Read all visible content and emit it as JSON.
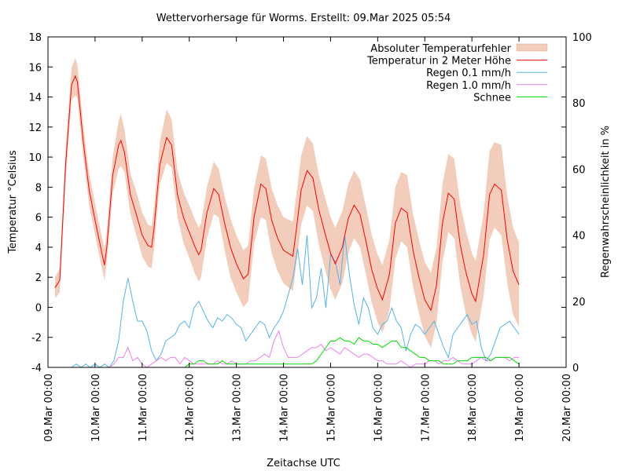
{
  "chart_data": {
    "type": "line",
    "title": "Wettervorhersage für Worms. Erstellt: 09.Mar 2025 05:54",
    "xlabel": "Zeitachse UTC",
    "ylabel": "Temperatur °Celsius",
    "y2label": "Regenwahrscheinlichkeit in %",
    "ylim": [
      -4,
      18
    ],
    "y2lim": [
      0,
      100
    ],
    "xlim_days": [
      0,
      11
    ],
    "yticks": [
      "18",
      "16",
      "14",
      "12",
      "10",
      "8",
      "6",
      "4",
      "2",
      "0",
      "-2",
      "-4"
    ],
    "y2ticks": [
      "100",
      "80",
      "60",
      "40",
      "20",
      "0"
    ],
    "xticks": [
      "09.Mar 00:00",
      "10.Mar 00:00",
      "11.Mar 00:00",
      "12.Mar 00:00",
      "13.Mar 00:00",
      "14.Mar 00:00",
      "15.Mar 00:00",
      "16.Mar 00:00",
      "17.Mar 00:00",
      "18.Mar 00:00",
      "19.Mar 00:00",
      "20.Mar 00:00"
    ],
    "legend_position": "top-right",
    "grid": false,
    "x_unit": "days since 09.Mar 00:00 UTC",
    "x": [
      0.15,
      0.25,
      0.375,
      0.5,
      0.58,
      0.625,
      0.75,
      0.875,
      1.0,
      1.125,
      1.2,
      1.25,
      1.375,
      1.5,
      1.55,
      1.625,
      1.75,
      1.875,
      2.0,
      2.125,
      2.2,
      2.25,
      2.375,
      2.52,
      2.625,
      2.75,
      2.875,
      3.0,
      3.125,
      3.2,
      3.25,
      3.375,
      3.52,
      3.625,
      3.75,
      3.875,
      4.0,
      4.15,
      4.25,
      4.375,
      4.52,
      4.625,
      4.75,
      4.875,
      5.0,
      5.2,
      5.25,
      5.375,
      5.5,
      5.625,
      5.75,
      5.875,
      6.0,
      6.1,
      6.25,
      6.375,
      6.5,
      6.625,
      6.75,
      6.875,
      7.0,
      7.1,
      7.25,
      7.375,
      7.5,
      7.625,
      7.75,
      7.875,
      8.0,
      8.13,
      8.25,
      8.375,
      8.5,
      8.625,
      8.75,
      8.875,
      9.0,
      9.08,
      9.25,
      9.375,
      9.48,
      9.625,
      9.75,
      9.875,
      10.0
    ],
    "series": [
      {
        "name": "Temperatur in 2 Meter Höhe",
        "color": "#ff0000",
        "values": [
          1.3,
          1.8,
          9.5,
          14.8,
          15.4,
          15.0,
          11.0,
          7.8,
          5.8,
          3.9,
          2.8,
          4.0,
          8.8,
          10.8,
          11.1,
          10.3,
          7.5,
          6.2,
          4.8,
          4.1,
          4.0,
          5.2,
          9.5,
          11.3,
          10.8,
          7.5,
          6.0,
          5.0,
          4.0,
          3.5,
          3.8,
          6.3,
          7.9,
          7.5,
          5.6,
          4.0,
          2.9,
          1.9,
          2.2,
          6.0,
          8.2,
          7.9,
          5.8,
          4.6,
          3.8,
          3.4,
          4.6,
          7.8,
          9.1,
          8.6,
          6.5,
          5.0,
          3.6,
          2.9,
          4.0,
          5.9,
          6.8,
          6.2,
          4.4,
          2.5,
          1.2,
          0.5,
          2.2,
          5.6,
          6.6,
          6.3,
          3.8,
          2.0,
          0.5,
          -0.2,
          1.5,
          5.6,
          7.6,
          7.2,
          4.2,
          2.3,
          0.9,
          0.4,
          3.5,
          7.5,
          8.2,
          7.8,
          4.5,
          2.4,
          1.5
        ]
      },
      {
        "name": "Absoluter Temperaturfehler",
        "color": "#f2cdbb",
        "lower": [
          0.6,
          1.0,
          8.5,
          13.8,
          14.1,
          13.9,
          10.0,
          6.8,
          4.8,
          2.9,
          1.8,
          3.0,
          7.6,
          9.2,
          9.4,
          9.0,
          6.2,
          4.8,
          3.4,
          2.7,
          2.6,
          3.8,
          8.2,
          9.6,
          9.3,
          6.0,
          4.3,
          3.3,
          2.2,
          1.7,
          2.0,
          4.6,
          6.2,
          6.0,
          3.8,
          2.0,
          1.0,
          0.0,
          0.4,
          4.2,
          6.0,
          5.8,
          3.6,
          2.4,
          1.6,
          1.1,
          2.3,
          5.5,
          6.8,
          6.4,
          4.2,
          2.6,
          1.2,
          0.5,
          1.6,
          3.6,
          4.6,
          4.0,
          2.2,
          0.3,
          -1.0,
          -1.7,
          -0.2,
          3.2,
          4.4,
          4.0,
          1.4,
          -0.4,
          -1.9,
          -2.7,
          -1.0,
          3.0,
          5.0,
          4.6,
          1.5,
          -0.5,
          -1.8,
          -2.3,
          0.8,
          4.5,
          5.3,
          4.8,
          1.6,
          -0.5,
          -1.3
        ],
        "upper": [
          2.0,
          2.6,
          10.5,
          15.9,
          16.6,
          16.2,
          12.1,
          8.9,
          6.9,
          5.0,
          3.9,
          5.1,
          10.0,
          12.4,
          12.9,
          11.8,
          8.9,
          7.7,
          6.3,
          5.5,
          5.4,
          6.6,
          11.0,
          13.2,
          12.5,
          9.1,
          7.7,
          6.8,
          5.8,
          5.3,
          5.6,
          8.0,
          9.7,
          9.2,
          7.4,
          5.9,
          4.8,
          3.8,
          4.1,
          7.9,
          10.1,
          9.9,
          7.9,
          6.8,
          6.0,
          5.7,
          6.9,
          10.1,
          11.4,
          10.9,
          8.8,
          7.4,
          6.0,
          5.3,
          6.4,
          8.2,
          9.1,
          8.5,
          6.7,
          4.8,
          3.5,
          2.8,
          4.5,
          8.0,
          9.0,
          8.8,
          6.2,
          4.5,
          3.0,
          2.3,
          4.0,
          8.2,
          10.2,
          9.9,
          6.9,
          5.1,
          3.6,
          3.1,
          6.3,
          10.4,
          11.0,
          10.8,
          7.4,
          5.3,
          4.3
        ]
      }
    ],
    "rain_x": [
      0.5,
      0.6,
      0.7,
      0.8,
      0.9,
      1.0,
      1.1,
      1.2,
      1.3,
      1.4,
      1.5,
      1.6,
      1.7,
      1.8,
      1.9,
      2.0,
      2.1,
      2.2,
      2.3,
      2.4,
      2.5,
      2.6,
      2.7,
      2.8,
      2.9,
      3.0,
      3.1,
      3.2,
      3.3,
      3.4,
      3.5,
      3.6,
      3.7,
      3.8,
      3.9,
      4.0,
      4.1,
      4.2,
      4.3,
      4.4,
      4.5,
      4.6,
      4.7,
      4.8,
      4.9,
      5.0,
      5.1,
      5.2,
      5.3,
      5.4,
      5.5,
      5.6,
      5.7,
      5.8,
      5.9,
      6.0,
      6.1,
      6.2,
      6.3,
      6.4,
      6.5,
      6.6,
      6.7,
      6.8,
      6.9,
      7.0,
      7.1,
      7.2,
      7.3,
      7.4,
      7.5,
      7.6,
      7.7,
      7.8,
      7.9,
      8.0,
      8.1,
      8.2,
      8.3,
      8.4,
      8.5,
      8.6,
      8.7,
      8.8,
      8.9,
      9.0,
      9.1,
      9.2,
      9.3,
      9.4,
      9.5,
      9.6,
      9.7,
      9.8,
      9.9,
      10.0
    ],
    "rain_series": [
      {
        "name": "Regen 0.1 mm/h",
        "color": "#56b4e9",
        "values": [
          0,
          1,
          0,
          1,
          0,
          1,
          0,
          1,
          0,
          2,
          8,
          20,
          27,
          20,
          14,
          14,
          11,
          5,
          2,
          4,
          8,
          9,
          10,
          13,
          14,
          12,
          18,
          20,
          17,
          14,
          12,
          15,
          14,
          16,
          15,
          13,
          12,
          8,
          10,
          12,
          14,
          13,
          9,
          12,
          14,
          17,
          22,
          27,
          36,
          25,
          40,
          18,
          21,
          30,
          18,
          34,
          32,
          25,
          40,
          28,
          19,
          13,
          21,
          18,
          12,
          10,
          13,
          14,
          18,
          14,
          12,
          5,
          10,
          13,
          12,
          10,
          12,
          14,
          10,
          6,
          3,
          10,
          12,
          14,
          16,
          13,
          14,
          6,
          2,
          4,
          8,
          12,
          13,
          14,
          12,
          10
        ]
      },
      {
        "name": "Regen 1.0 mm/h",
        "color": "#ee82ee",
        "values": [
          0,
          0,
          0,
          0,
          0,
          0,
          0,
          0,
          0,
          1,
          3,
          3,
          6,
          2,
          3,
          1,
          0,
          1,
          2,
          3,
          2,
          3,
          3,
          1,
          3,
          2,
          1,
          1,
          1,
          1,
          1,
          2,
          1,
          1,
          2,
          1,
          1,
          1,
          2,
          2,
          3,
          4,
          3,
          8,
          11,
          6,
          3,
          3,
          3,
          4,
          5,
          6,
          6,
          7,
          5,
          6,
          5,
          4,
          6,
          5,
          4,
          3,
          4,
          4,
          3,
          2,
          2,
          1,
          1,
          1,
          2,
          1,
          0,
          1,
          1,
          1,
          2,
          2,
          1,
          2,
          2,
          3,
          2,
          1,
          1,
          1,
          2,
          3,
          2,
          2,
          3,
          3,
          3,
          2,
          3,
          3
        ]
      },
      {
        "name": "Schnee",
        "color": "#00dd00",
        "values": [
          0,
          0,
          0,
          0,
          0,
          0,
          0,
          0,
          0,
          0,
          0,
          0,
          0,
          0,
          0,
          0,
          0,
          0,
          0,
          0,
          0,
          0,
          0,
          0,
          0,
          1,
          1,
          2,
          2,
          1,
          1,
          1,
          2,
          1,
          1,
          1,
          1,
          1,
          1,
          1,
          1,
          1,
          1,
          1,
          1,
          1,
          1,
          1,
          1,
          1,
          1,
          1,
          2,
          4,
          6,
          8,
          8,
          9,
          8,
          8,
          7,
          9,
          8,
          8,
          7,
          7,
          6,
          7,
          8,
          8,
          6,
          6,
          5,
          4,
          3,
          3,
          2,
          2,
          2,
          1,
          1,
          1,
          2,
          2,
          2,
          3,
          3,
          3,
          3,
          2,
          3,
          3,
          3,
          3,
          2,
          1
        ]
      }
    ]
  }
}
